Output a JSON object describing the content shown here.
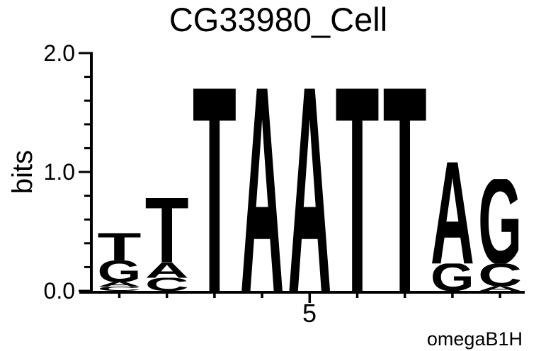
{
  "chart_data": {
    "type": "sequence_logo",
    "title": "CG33980_Cell",
    "ylabel": "bits",
    "ylim": [
      0.0,
      2.0
    ],
    "yticks": {
      "major": [
        {
          "value": 0.0,
          "label": "0.0"
        },
        {
          "value": 1.0,
          "label": "1.0"
        },
        {
          "value": 2.0,
          "label": "2.0"
        }
      ],
      "minor_values": [
        0.2,
        0.4,
        0.6,
        0.8,
        1.2,
        1.4,
        1.6,
        1.8
      ]
    },
    "xticks": {
      "positions": [
        1,
        2,
        3,
        4,
        5,
        6,
        7,
        8,
        9
      ],
      "labeled_position": 5,
      "label": "5"
    },
    "attribution": "omegaB1H",
    "colors": {
      "A": "#008000",
      "C": "#0000EE",
      "G": "#FFA500",
      "T": "#FF0000"
    },
    "consensus": "TTTAATTAG",
    "stacks": [
      {
        "position": 1,
        "letters": [
          {
            "letter": "C",
            "bits": 0.035
          },
          {
            "letter": "A",
            "bits": 0.04
          },
          {
            "letter": "G",
            "bits": 0.18
          },
          {
            "letter": "T",
            "bits": 0.23
          }
        ]
      },
      {
        "position": 2,
        "letters": [
          {
            "letter": "C",
            "bits": 0.11
          },
          {
            "letter": "A",
            "bits": 0.13
          },
          {
            "letter": "T",
            "bits": 0.54
          }
        ]
      },
      {
        "position": 3,
        "letters": [
          {
            "letter": "T",
            "bits": 1.7
          }
        ]
      },
      {
        "position": 4,
        "letters": [
          {
            "letter": "A",
            "bits": 1.7
          }
        ]
      },
      {
        "position": 5,
        "letters": [
          {
            "letter": "A",
            "bits": 1.7
          }
        ]
      },
      {
        "position": 6,
        "letters": [
          {
            "letter": "T",
            "bits": 1.7
          }
        ]
      },
      {
        "position": 7,
        "letters": [
          {
            "letter": "T",
            "bits": 1.7
          }
        ]
      },
      {
        "position": 8,
        "letters": [
          {
            "letter": "G",
            "bits": 0.23
          },
          {
            "letter": "A",
            "bits": 0.85
          }
        ]
      },
      {
        "position": 9,
        "letters": [
          {
            "letter": "A",
            "bits": 0.04
          },
          {
            "letter": "C",
            "bits": 0.19
          },
          {
            "letter": "G",
            "bits": 0.71
          }
        ]
      }
    ]
  }
}
